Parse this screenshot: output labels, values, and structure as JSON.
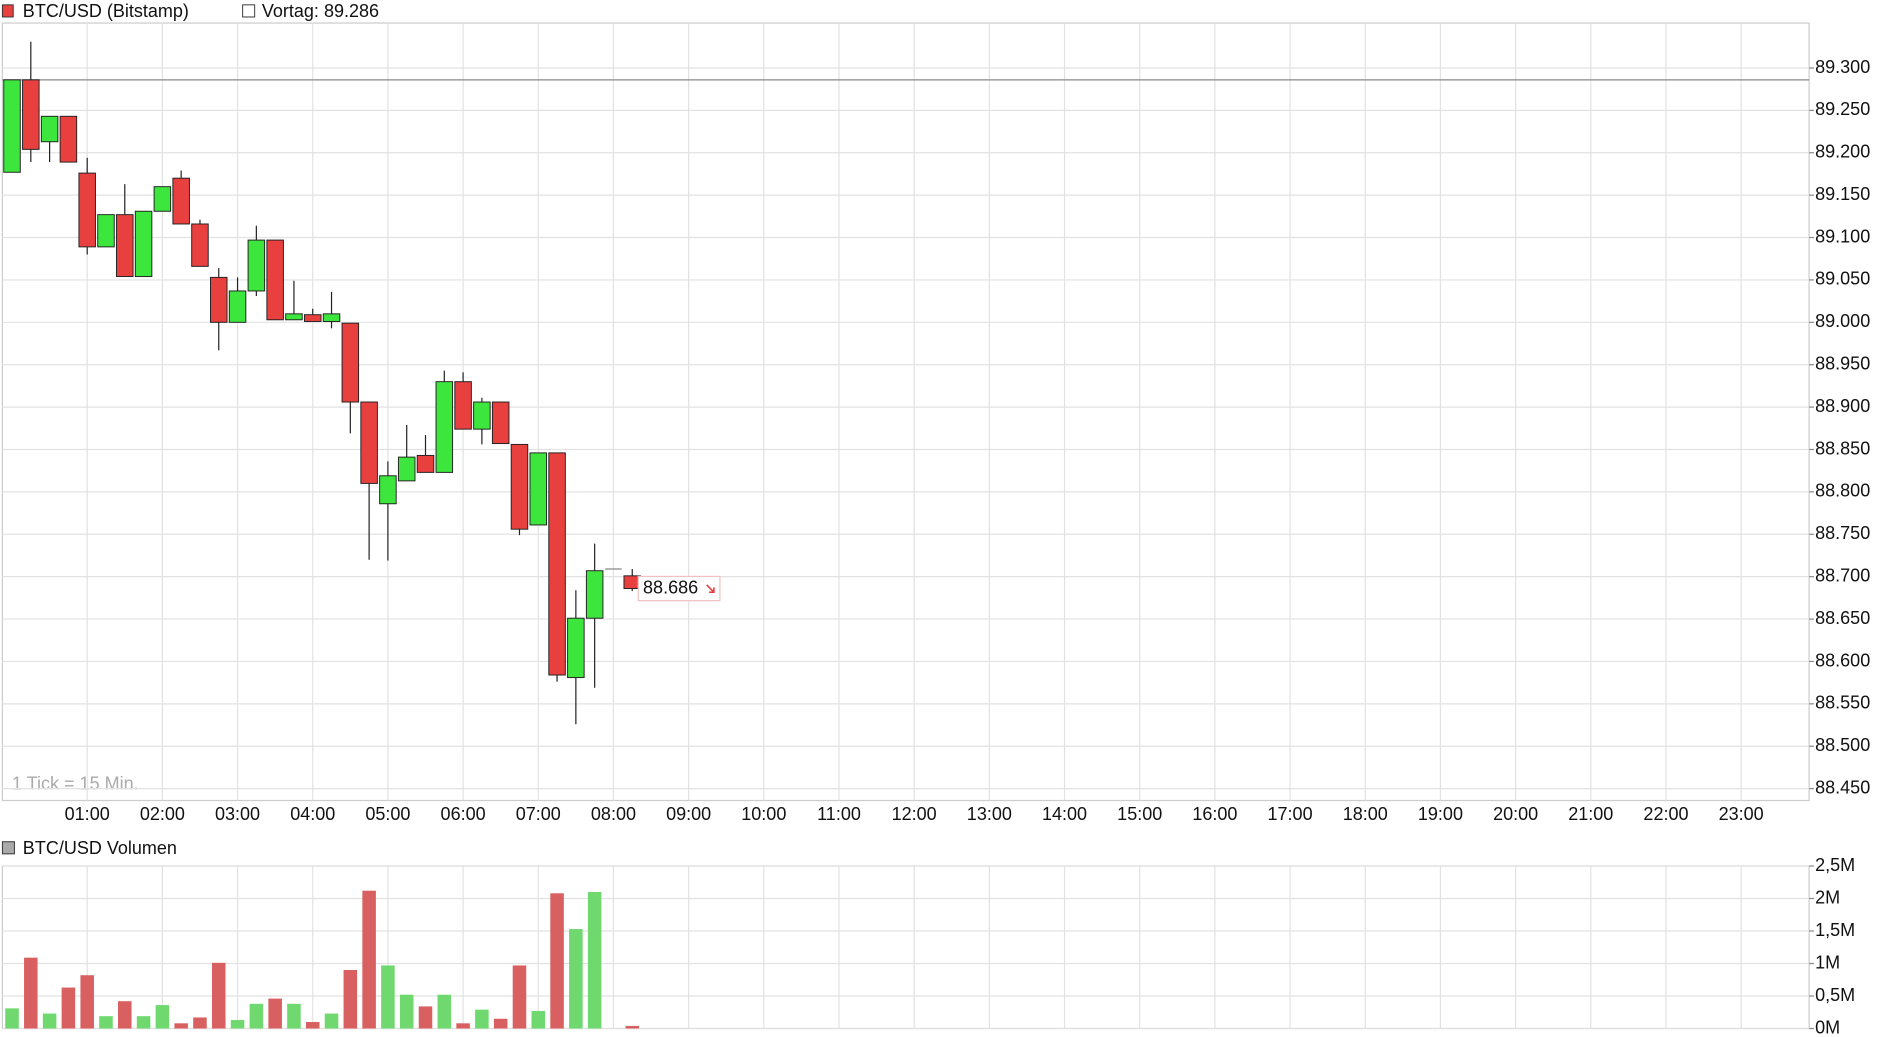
{
  "chart_data": [
    {
      "type": "candlestick",
      "title": "BTC/USD (Bitstamp)",
      "previous_close": {
        "value": 89286,
        "label": "Vortag: 89.286"
      },
      "last_price": {
        "value": 88686,
        "label": "88.686"
      },
      "note": "1 Tick = 15 Min.",
      "x": [
        "00:00",
        "00:15",
        "00:30",
        "00:45",
        "01:00",
        "01:15",
        "01:30",
        "01:45",
        "02:00",
        "02:15",
        "02:30",
        "02:45",
        "03:00",
        "03:15",
        "03:30",
        "03:45",
        "04:00",
        "04:15",
        "04:30",
        "04:45",
        "05:00",
        "05:15",
        "05:30",
        "05:45",
        "06:00",
        "06:15",
        "06:30",
        "06:45",
        "07:00",
        "07:15",
        "07:30",
        "07:45",
        "08:00",
        "08:15"
      ],
      "open": [
        89177,
        89286,
        89213,
        89243,
        89176,
        89089,
        89127,
        89054,
        89131,
        89170,
        89116,
        89053,
        89000,
        89037,
        89097,
        89003,
        89009,
        89001,
        88999,
        88906,
        88786,
        88813,
        88843,
        88823,
        88930,
        88874,
        88906,
        88856,
        88761,
        88846,
        88581,
        88651,
        88709,
        88701
      ],
      "high": [
        89286,
        89331,
        89243,
        89243,
        89194,
        89127,
        89163,
        89131,
        89160,
        89179,
        89121,
        89064,
        89053,
        89114,
        89097,
        89049,
        89016,
        89036,
        88999,
        88906,
        88836,
        88879,
        88867,
        88943,
        88941,
        88911,
        88906,
        88856,
        88846,
        88846,
        88684,
        88739,
        88709,
        88709
      ],
      "low": [
        89177,
        89189,
        89189,
        89189,
        89080,
        89089,
        89054,
        89054,
        89131,
        89116,
        89066,
        88967,
        89000,
        89031,
        89003,
        89003,
        89001,
        88993,
        88869,
        88720,
        88719,
        88813,
        88823,
        88823,
        88874,
        88856,
        88857,
        88749,
        88761,
        88576,
        88526,
        88569,
        88709,
        88683
      ],
      "close": [
        89286,
        89204,
        89243,
        89189,
        89089,
        89127,
        89054,
        89131,
        89160,
        89116,
        89066,
        89000,
        89037,
        89097,
        89003,
        89010,
        89001,
        89010,
        88906,
        88810,
        88819,
        88841,
        88823,
        88930,
        88874,
        88906,
        88857,
        88756,
        88846,
        88584,
        88651,
        88707,
        88709,
        88686
      ],
      "up_color": "#3de63d",
      "down_color": "#e8403f",
      "xlim": [
        "00:00",
        "24:00"
      ],
      "xticks": [
        "01:00",
        "02:00",
        "03:00",
        "04:00",
        "05:00",
        "06:00",
        "07:00",
        "08:00",
        "09:00",
        "10:00",
        "11:00",
        "12:00",
        "13:00",
        "14:00",
        "15:00",
        "16:00",
        "17:00",
        "18:00",
        "19:00",
        "20:00",
        "21:00",
        "22:00",
        "23:00"
      ],
      "ylim": [
        88436,
        89353
      ],
      "yticks": [
        {
          "value": 88450,
          "label": "88.450"
        },
        {
          "value": 88500,
          "label": "88.500"
        },
        {
          "value": 88550,
          "label": "88.550"
        },
        {
          "value": 88600,
          "label": "88.600"
        },
        {
          "value": 88650,
          "label": "88.650"
        },
        {
          "value": 88700,
          "label": "88.700"
        },
        {
          "value": 88750,
          "label": "88.750"
        },
        {
          "value": 88800,
          "label": "88.800"
        },
        {
          "value": 88850,
          "label": "88.850"
        },
        {
          "value": 88900,
          "label": "88.900"
        },
        {
          "value": 88950,
          "label": "88.950"
        },
        {
          "value": 89000,
          "label": "89.000"
        },
        {
          "value": 89050,
          "label": "89.050"
        },
        {
          "value": 89100,
          "label": "89.100"
        },
        {
          "value": 89150,
          "label": "89.150"
        },
        {
          "value": 89200,
          "label": "89.200"
        },
        {
          "value": 89250,
          "label": "89.250"
        },
        {
          "value": 89300,
          "label": "89.300"
        }
      ],
      "grid": true
    },
    {
      "type": "bar",
      "title": "BTC/USD Volumen",
      "x": [
        "00:00",
        "00:15",
        "00:30",
        "00:45",
        "01:00",
        "01:15",
        "01:30",
        "01:45",
        "02:00",
        "02:15",
        "02:30",
        "02:45",
        "03:00",
        "03:15",
        "03:30",
        "03:45",
        "04:00",
        "04:15",
        "04:30",
        "04:45",
        "05:00",
        "05:15",
        "05:30",
        "05:45",
        "06:00",
        "06:15",
        "06:30",
        "06:45",
        "07:00",
        "07:15",
        "07:30",
        "07:45",
        "08:00",
        "08:15"
      ],
      "values": [
        310000,
        1090000,
        230000,
        630000,
        820000,
        190000,
        420000,
        190000,
        360000,
        80000,
        170000,
        1010000,
        130000,
        380000,
        460000,
        380000,
        100000,
        230000,
        900000,
        2120000,
        970000,
        520000,
        340000,
        520000,
        80000,
        290000,
        150000,
        970000,
        270000,
        2080000,
        1530000,
        2100000,
        0,
        40000
      ],
      "colors": [
        "#6fd86f",
        "#d96060",
        "#6fd86f",
        "#d96060",
        "#d96060",
        "#6fd86f",
        "#d96060",
        "#6fd86f",
        "#6fd86f",
        "#d96060",
        "#d96060",
        "#d96060",
        "#6fd86f",
        "#6fd86f",
        "#d96060",
        "#6fd86f",
        "#d96060",
        "#6fd86f",
        "#d96060",
        "#d96060",
        "#6fd86f",
        "#6fd86f",
        "#d96060",
        "#6fd86f",
        "#d96060",
        "#6fd86f",
        "#d96060",
        "#d96060",
        "#6fd86f",
        "#d96060",
        "#6fd86f",
        "#6fd86f",
        "#6fd86f",
        "#d96060"
      ],
      "xlim": [
        "00:00",
        "24:00"
      ],
      "ylim": [
        0,
        2500000
      ],
      "yticks": [
        {
          "value": 0,
          "label": "0M"
        },
        {
          "value": 500000,
          "label": "0,5M"
        },
        {
          "value": 1000000,
          "label": "1M"
        },
        {
          "value": 1500000,
          "label": "1,5M"
        },
        {
          "value": 2000000,
          "label": "2M"
        },
        {
          "value": 2500000,
          "label": "2,5M"
        }
      ],
      "grid": true
    }
  ]
}
